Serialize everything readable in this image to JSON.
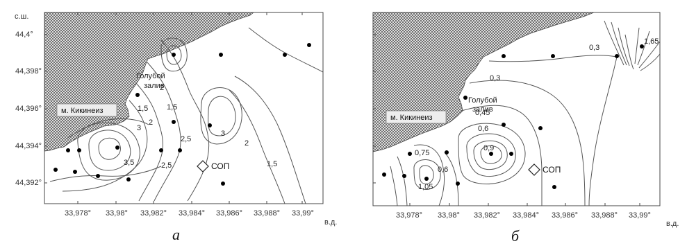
{
  "panels": [
    {
      "id": "a",
      "caption": "а",
      "lat_unit": "с.ш.",
      "lon_unit": "в.д.",
      "lat_ticks": [
        "44,4°",
        "44,398°",
        "44,396°",
        "44,394°",
        "44,392°"
      ],
      "lon_ticks": [
        "33,978°",
        "33,98°",
        "33,982°",
        "33,984°",
        "33,986°",
        "33,988°",
        "33,99°"
      ],
      "cape_label": "м. Кикинеиз",
      "bay_label_1": "Голубой",
      "bay_label_2": "залив",
      "marker_label": "СОП",
      "contour_labels": [
        "2",
        "1,5",
        "1,5",
        "2",
        "3",
        "3",
        "2,5",
        "3,5",
        "2,5",
        "2",
        "1,5"
      ]
    },
    {
      "id": "b",
      "caption": "б",
      "lat_unit": "",
      "lon_unit": "в.д.",
      "lat_ticks": [],
      "lon_ticks": [
        "33,978°",
        "33,98°",
        "33,982°",
        "33,984°",
        "33,986°",
        "33,988°",
        "33,99°"
      ],
      "cape_label": "м. Кикинеиз",
      "bay_label_1": "Голубой",
      "bay_label_2": "залив",
      "marker_label": "СОП",
      "contour_labels": [
        "0,3",
        "1,65",
        "0,3",
        "0,45",
        "0,6",
        "0,9",
        "0,75",
        "0,6",
        "1,05"
      ]
    }
  ],
  "colors": {
    "land_hatch": "#6a6a6a",
    "contour": "#555555",
    "station": "#000000"
  }
}
